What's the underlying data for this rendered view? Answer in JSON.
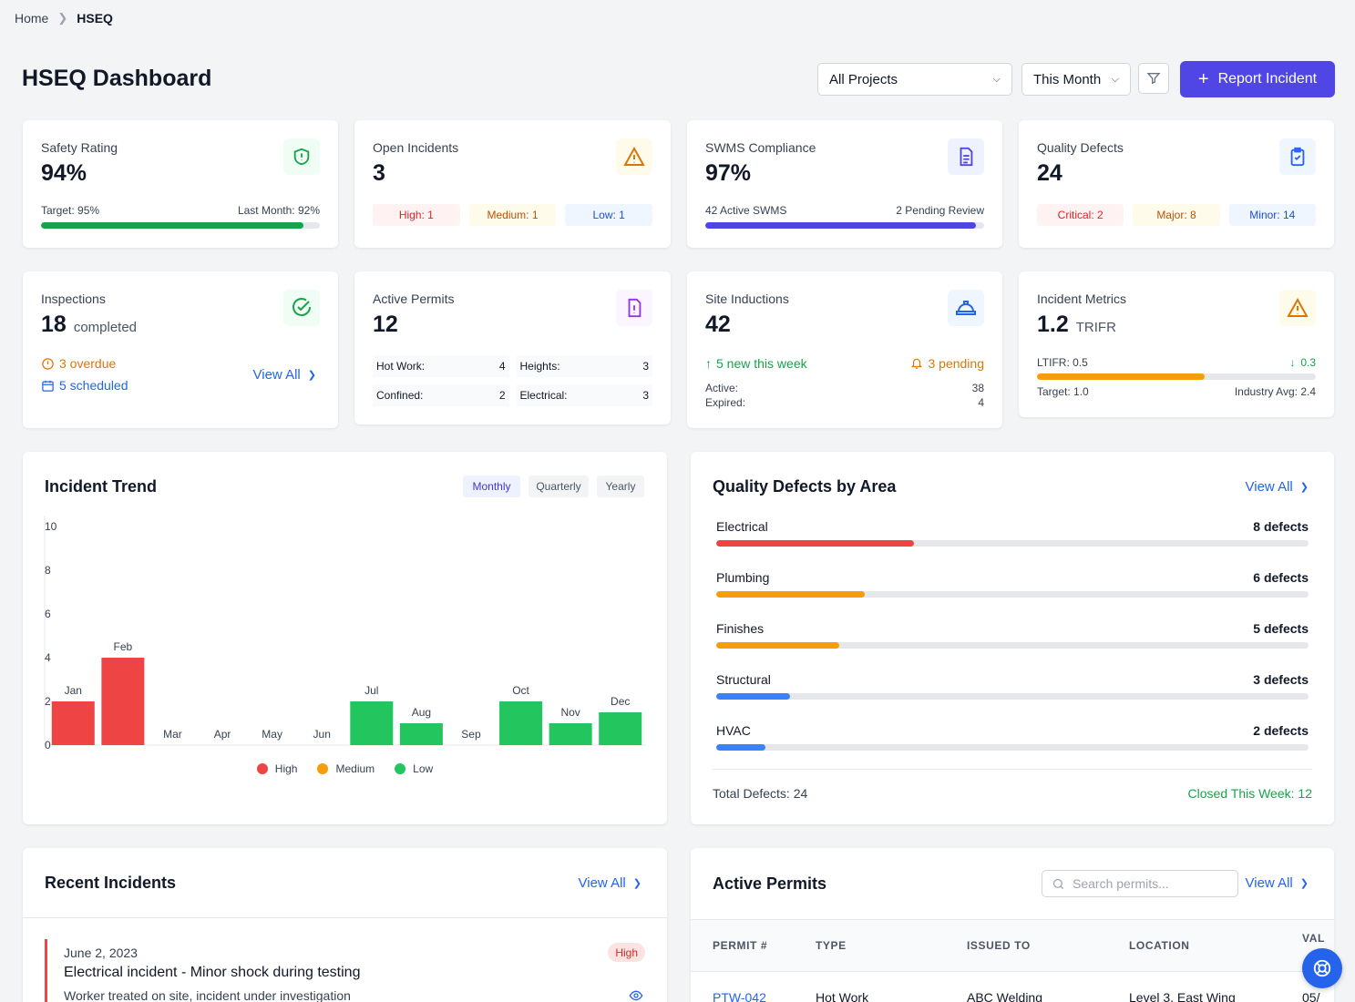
{
  "breadcrumb": {
    "home": "Home",
    "current": "HSEQ"
  },
  "page": {
    "title": "HSEQ Dashboard"
  },
  "filters": {
    "project": "All Projects",
    "period": "This Month",
    "report_label": "Report Incident"
  },
  "colors": {
    "primary": "#4f46e5",
    "link": "#2563eb",
    "high": "#ef4444",
    "medium": "#f59e0b",
    "low": "#22c55e"
  },
  "kpis": {
    "safety": {
      "label": "Safety Rating",
      "value": "94%",
      "target": "Target: 95%",
      "last_month": "Last Month: 92%",
      "progress": 0.94,
      "icon": "shield-alert-icon"
    },
    "open_incidents": {
      "label": "Open Incidents",
      "value": "3",
      "high": "High: 1",
      "medium": "Medium: 1",
      "low": "Low: 1",
      "icon": "warning-triangle-icon"
    },
    "swms": {
      "label": "SWMS Compliance",
      "value": "97%",
      "active": "42 Active SWMS",
      "pending": "2 Pending Review",
      "progress": 0.97,
      "icon": "document-icon"
    },
    "quality": {
      "label": "Quality Defects",
      "value": "24",
      "critical": "Critical: 2",
      "major": "Major: 8",
      "minor": "Minor: 14",
      "icon": "clipboard-check-icon"
    },
    "inspections": {
      "label": "Inspections",
      "value": "18",
      "unit": "completed",
      "overdue": "3 overdue",
      "scheduled": "5 scheduled",
      "view_all": "View All",
      "icon": "check-circle-icon"
    },
    "permits": {
      "label": "Active Permits",
      "value": "12",
      "items": [
        {
          "name": "Hot Work:",
          "count": "4"
        },
        {
          "name": "Heights:",
          "count": "3"
        },
        {
          "name": "Confined:",
          "count": "2"
        },
        {
          "name": "Electrical:",
          "count": "3"
        }
      ],
      "icon": "file-alert-icon"
    },
    "inductions": {
      "label": "Site Inductions",
      "value": "42",
      "new": "5 new this week",
      "pending": "3 pending",
      "active_label": "Active:",
      "active_value": "38",
      "expired_label": "Expired:",
      "expired_value": "4",
      "icon": "hard-hat-icon"
    },
    "metrics": {
      "label": "Incident Metrics",
      "value": "1.2",
      "unit": "TRIFR",
      "ltifr": "LTIFR: 0.5",
      "change": "0.3",
      "progress": 0.6,
      "target": "Target: 1.0",
      "industry": "Industry Avg: 2.4",
      "icon": "warning-triangle-icon"
    }
  },
  "trend": {
    "title": "Incident Trend",
    "periods": [
      "Monthly",
      "Quarterly",
      "Yearly"
    ],
    "active_period": "Monthly",
    "legend": [
      "High",
      "Medium",
      "Low"
    ]
  },
  "chart_data": {
    "type": "bar",
    "categories": [
      "Jan",
      "Feb",
      "Mar",
      "Apr",
      "May",
      "Jun",
      "Jul",
      "Aug",
      "Sep",
      "Oct",
      "Nov",
      "Dec"
    ],
    "values": [
      2,
      4,
      0,
      0,
      0,
      0,
      2,
      1,
      0,
      2,
      1,
      1.5
    ],
    "severity": [
      "High",
      "High",
      "",
      "",
      "",
      "",
      "Low",
      "Low",
      "",
      "Low",
      "Low",
      "Low"
    ],
    "yticks": [
      0,
      2,
      4,
      6,
      8,
      10
    ],
    "ylim": [
      0,
      10
    ],
    "legend": [
      "High",
      "Medium",
      "Low"
    ],
    "grid": false
  },
  "defects": {
    "title": "Quality Defects by Area",
    "view_all": "View All",
    "areas": [
      {
        "name": "Electrical",
        "count": "8 defects",
        "value": 8,
        "color": "#ef4444"
      },
      {
        "name": "Plumbing",
        "count": "6 defects",
        "value": 6,
        "color": "#f59e0b"
      },
      {
        "name": "Finishes",
        "count": "5 defects",
        "value": 5,
        "color": "#f59e0b"
      },
      {
        "name": "Structural",
        "count": "3 defects",
        "value": 3,
        "color": "#3b82f6"
      },
      {
        "name": "HVAC",
        "count": "2 defects",
        "value": 2,
        "color": "#3b82f6"
      }
    ],
    "scale_max": 24,
    "total": "Total Defects: 24",
    "closed": "Closed This Week: 12"
  },
  "recent": {
    "title": "Recent Incidents",
    "view_all": "View All",
    "items": [
      {
        "date": "June 2, 2023",
        "title": "Electrical incident - Minor shock during testing",
        "desc": "Worker treated on site, incident under investigation",
        "severity": "High"
      }
    ]
  },
  "active_permits": {
    "title": "Active Permits",
    "search_placeholder": "Search permits...",
    "view_all": "View All",
    "columns": [
      "PERMIT #",
      "TYPE",
      "ISSUED TO",
      "LOCATION",
      "VAL"
    ],
    "rows": [
      {
        "id": "PTW-042",
        "type": "Hot Work",
        "issued": "ABC Welding",
        "location": "Level 3, East Wing",
        "valid": "05/"
      }
    ]
  }
}
